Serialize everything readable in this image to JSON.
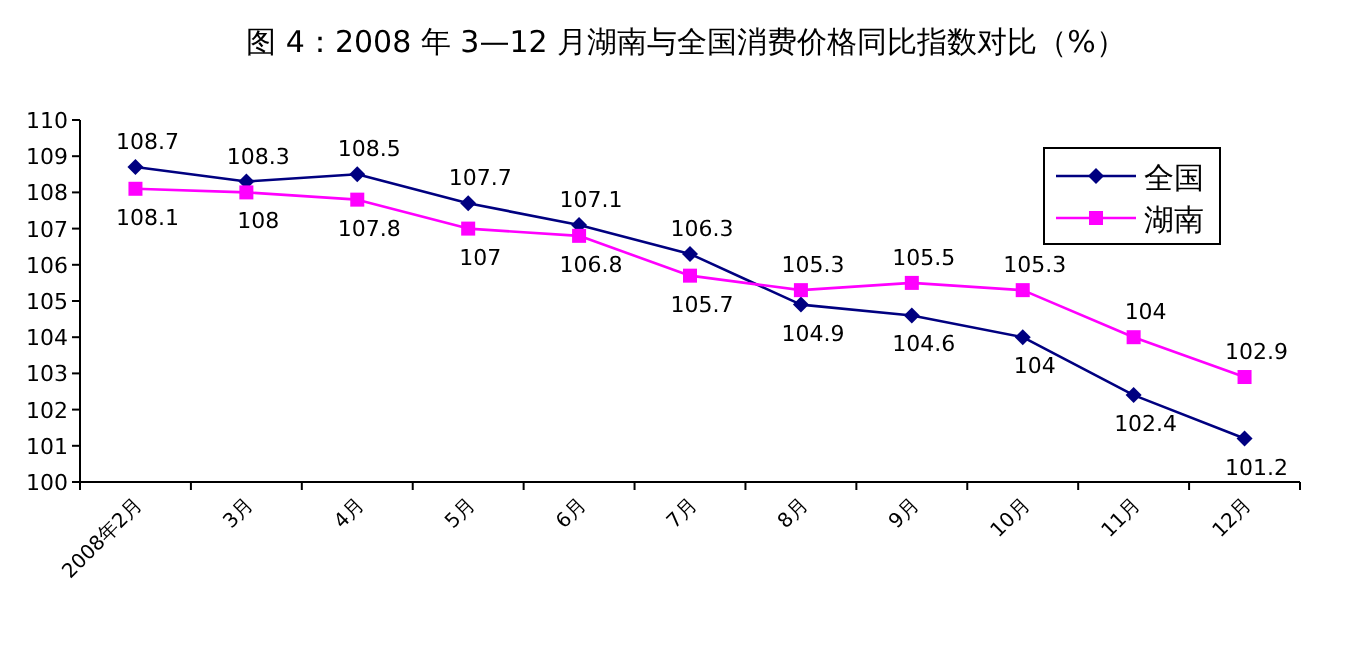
{
  "chart_data": {
    "type": "line",
    "title": "图 4：2008 年 3—12 月湖南与全国消费价格同比指数对比（%）",
    "categories": [
      "2008年2月",
      "3月",
      "4月",
      "5月",
      "6月",
      "7月",
      "8月",
      "9月",
      "10月",
      "11月",
      "12月"
    ],
    "series": [
      {
        "name": "全国",
        "color": "#000080",
        "marker": "diamond",
        "values": [
          108.7,
          108.3,
          108.5,
          107.7,
          107.1,
          106.3,
          104.9,
          104.6,
          104,
          102.4,
          101.2
        ]
      },
      {
        "name": "湖南",
        "color": "#ff00ff",
        "marker": "square",
        "values": [
          108.1,
          108,
          107.8,
          107,
          106.8,
          105.7,
          105.3,
          105.5,
          105.3,
          104,
          102.9
        ]
      }
    ],
    "ylim": [
      100,
      110
    ],
    "yticks": [
      100,
      101,
      102,
      103,
      104,
      105,
      106,
      107,
      108,
      109,
      110
    ],
    "grid": false,
    "legend": "top right",
    "data_labels": true
  }
}
